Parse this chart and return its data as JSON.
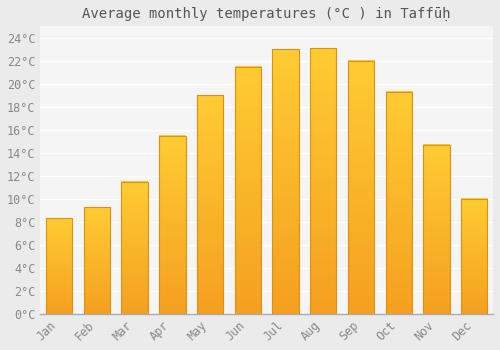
{
  "title": "Average monthly temperatures (°C ) in Taffūḥ",
  "months": [
    "Jan",
    "Feb",
    "Mar",
    "Apr",
    "May",
    "Jun",
    "Jul",
    "Aug",
    "Sep",
    "Oct",
    "Nov",
    "Dec"
  ],
  "values": [
    8.3,
    9.3,
    11.5,
    15.5,
    19.0,
    21.5,
    23.0,
    23.1,
    22.0,
    19.3,
    14.7,
    10.0
  ],
  "ylim": [
    0,
    25
  ],
  "yticks": [
    0,
    2,
    4,
    6,
    8,
    10,
    12,
    14,
    16,
    18,
    20,
    22,
    24
  ],
  "bar_color_bottom": "#F5A020",
  "bar_color_top": "#FFCC33",
  "bar_border_color": "#E09010",
  "background_color": "#EBEBEB",
  "plot_bg_color": "#F5F5F5",
  "grid_color": "#FFFFFF",
  "tick_label_color": "#888888",
  "title_color": "#555555",
  "title_fontsize": 10,
  "tick_fontsize": 8.5
}
